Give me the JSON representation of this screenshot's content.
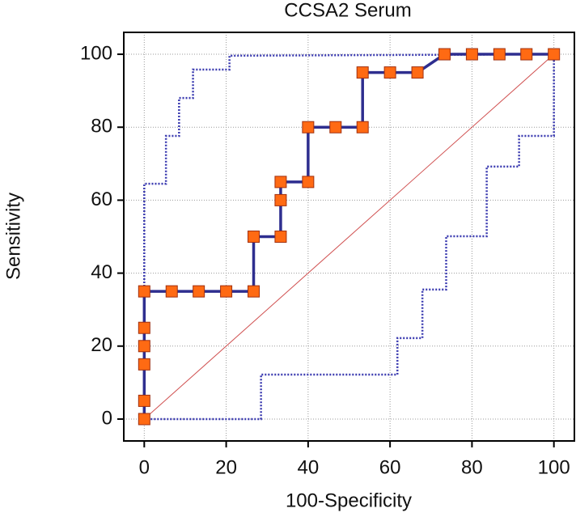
{
  "chart_data": {
    "type": "line",
    "title": "CCSA2  Serum",
    "x_label": "100-Specificity",
    "y_label": "Sensitivity",
    "xlim": [
      -5,
      105
    ],
    "ylim": [
      -6,
      106
    ],
    "xticks": [
      0,
      20,
      40,
      60,
      80,
      100
    ],
    "yticks": [
      0,
      20,
      40,
      60,
      80,
      100
    ],
    "grid": true,
    "roc": {
      "color": "#2e2e8f",
      "marker_color": "#ff6a13",
      "x": [
        0,
        0,
        0,
        0,
        0,
        0,
        6.7,
        13.3,
        20,
        26.7,
        26.7,
        33.3,
        33.3,
        33.3,
        40,
        40,
        46.7,
        53.3,
        53.3,
        60,
        66.7,
        73.3,
        80,
        86.7,
        93.3,
        100
      ],
      "values": [
        0,
        5,
        15,
        20,
        25,
        35,
        35,
        35,
        35,
        35,
        50,
        50,
        60,
        65,
        65,
        80,
        80,
        80,
        95,
        95,
        95,
        100,
        100,
        100,
        100,
        100
      ]
    },
    "upper_band": {
      "color": "#3a3ab0",
      "x": [
        0,
        0,
        5.3,
        5.3,
        8.5,
        8.5,
        11.9,
        11.9,
        20.8,
        20.8,
        100
      ],
      "values": [
        0,
        64.5,
        64.5,
        77.6,
        77.6,
        88,
        88,
        95.8,
        95.8,
        99.6,
        100
      ]
    },
    "lower_band": {
      "color": "#3a3ab0",
      "x": [
        0,
        28.5,
        28.5,
        61.8,
        61.8,
        67.9,
        67.9,
        73.7,
        73.7,
        83.6,
        83.6,
        91.5,
        91.5,
        100,
        100
      ],
      "values": [
        0,
        0,
        12.2,
        12.2,
        22.2,
        22.2,
        35.5,
        35.5,
        50.1,
        50.1,
        69.2,
        69.2,
        77.6,
        77.6,
        100
      ]
    },
    "reference_line": {
      "color": "#d05050",
      "x": [
        0,
        100
      ],
      "values": [
        0,
        100
      ]
    }
  }
}
